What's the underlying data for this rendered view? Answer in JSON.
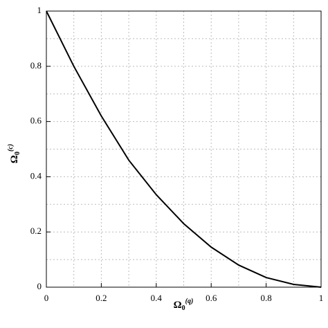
{
  "chart_data": {
    "type": "line",
    "xlabel": {
      "symbol": "Ω",
      "subscript": "0",
      "superscript": "(q)"
    },
    "ylabel": {
      "symbol": "Ω",
      "subscript": "0",
      "superscript": "(c)"
    },
    "x": [
      0,
      0.1,
      0.2,
      0.3,
      0.4,
      0.5,
      0.6,
      0.7,
      0.8,
      0.9,
      1
    ],
    "series": [
      {
        "color": "#000000",
        "values": [
          1,
          0.8,
          0.62,
          0.46,
          0.335,
          0.23,
          0.145,
          0.08,
          0.035,
          0.01,
          0
        ]
      }
    ],
    "xlim": [
      0,
      1
    ],
    "ylim": [
      0,
      1
    ],
    "xticks": [
      0,
      0.2,
      0.4,
      0.6,
      0.8,
      1
    ],
    "yticks": [
      0,
      0.2,
      0.4,
      0.6,
      0.8,
      1
    ],
    "grid": true,
    "xgrid": [
      0.1,
      0.2,
      0.3,
      0.4,
      0.5,
      0.6,
      0.7,
      0.8,
      0.9
    ],
    "ygrid": [
      0.1,
      0.2,
      0.3,
      0.4,
      0.5,
      0.6,
      0.7,
      0.8,
      0.9
    ]
  }
}
